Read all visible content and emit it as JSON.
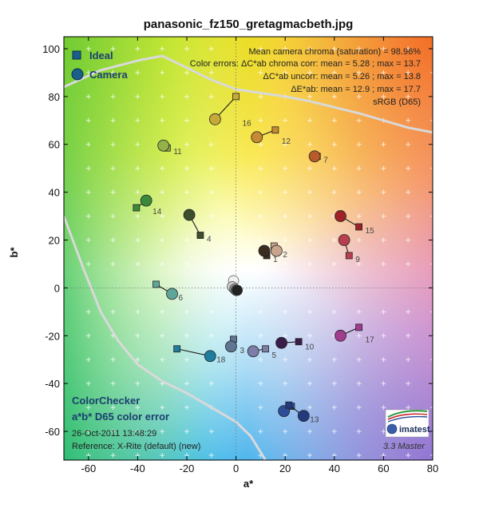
{
  "chart_data": {
    "type": "scatter",
    "title": "panasonic_fz150_gretagmacbeth.jpg",
    "xlabel": "a*",
    "ylabel": "b*",
    "xlim": [
      -70,
      80
    ],
    "ylim": [
      -72,
      105
    ],
    "x_ticks": [
      -60,
      -40,
      -20,
      0,
      20,
      40,
      60,
      80
    ],
    "y_ticks": [
      -60,
      -40,
      -20,
      0,
      20,
      40,
      60,
      80,
      100
    ],
    "x_tick_labels": [
      "-60",
      "-40",
      "-20",
      "0",
      "20",
      "40",
      "60",
      "80"
    ],
    "y_tick_labels": [
      "-60",
      "-40",
      "-20",
      "0",
      "20",
      "40",
      "60",
      "80",
      "100"
    ],
    "legend": {
      "placement": "top-left",
      "items": [
        {
          "label": "Ideal",
          "marker": "square",
          "color": "#1a5e8c"
        },
        {
          "label": "Camera",
          "marker": "circle",
          "color": "#1a5e8c"
        }
      ]
    },
    "stats": [
      "Mean camera chroma (saturation) = 98.96%",
      "Color errors: ΔC*ab chroma corr:  mean = 5.28 ;  max = 13.7",
      "ΔC*ab uncorr:  mean = 5.26 ;  max = 13.8",
      "ΔE*ab:  mean = 12.9 ;  max = 17.7",
      "sRGB (D65)"
    ],
    "bottom_text": {
      "line1": "ColorChecker",
      "line2": "a*b* D65 color error",
      "line3": "26-Oct-2011 13:48:29",
      "line4": "Reference: X-Rite (default) (new)"
    },
    "logo_text": "imatest",
    "version_text": "3.3  Master",
    "patches": [
      {
        "id": "1",
        "ideal": [
          12.5,
          13.5
        ],
        "camera": [
          11.5,
          15.5
        ],
        "color": "#3b2c22"
      },
      {
        "id": "2",
        "ideal": [
          15.5,
          17.5
        ],
        "camera": [
          16.5,
          15.5
        ],
        "color": "#c9a48c"
      },
      {
        "id": "3",
        "ideal": [
          -1,
          -21.5
        ],
        "camera": [
          -2,
          -24.5
        ],
        "color": "#5f7592"
      },
      {
        "id": "4",
        "ideal": [
          -14.5,
          22
        ],
        "camera": [
          -19,
          30.5
        ],
        "color": "#3c4e2b"
      },
      {
        "id": "5",
        "ideal": [
          12,
          -25.5
        ],
        "camera": [
          7,
          -26.5
        ],
        "color": "#7b7ea8"
      },
      {
        "id": "6",
        "ideal": [
          -32.5,
          1.5
        ],
        "camera": [
          -26,
          -2.5
        ],
        "color": "#5ea69a"
      },
      {
        "id": "7",
        "ideal": [
          33,
          55
        ],
        "camera": [
          32,
          55
        ],
        "color": "#b85b2a"
      },
      {
        "id": "8",
        "ideal": [
          22.5,
          -49.5
        ],
        "camera": [
          19.5,
          -51.5
        ],
        "color": "#2c4d9a"
      },
      {
        "id": "9",
        "ideal": [
          46,
          13.5
        ],
        "camera": [
          44,
          20
        ],
        "color": "#b8404e"
      },
      {
        "id": "10",
        "ideal": [
          25.5,
          -22.5
        ],
        "camera": [
          18.5,
          -23
        ],
        "color": "#3a1d4a"
      },
      {
        "id": "11",
        "ideal": [
          -28,
          58.5
        ],
        "camera": [
          -29.5,
          59.5
        ],
        "color": "#93b049"
      },
      {
        "id": "12",
        "ideal": [
          16,
          66
        ],
        "camera": [
          8.5,
          63
        ],
        "color": "#c58a33"
      },
      {
        "id": "13",
        "ideal": [
          21.5,
          -49
        ],
        "camera": [
          27.5,
          -53.5
        ],
        "color": "#233a7e"
      },
      {
        "id": "14",
        "ideal": [
          -40.5,
          33.5
        ],
        "camera": [
          -36.5,
          36.5
        ],
        "color": "#3b8a3c"
      },
      {
        "id": "15",
        "ideal": [
          50,
          25.5
        ],
        "camera": [
          42.5,
          30
        ],
        "color": "#9e2226"
      },
      {
        "id": "16",
        "ideal": [
          0,
          80
        ],
        "camera": [
          -8.5,
          70.5
        ],
        "color": "#c6a93a"
      },
      {
        "id": "17",
        "ideal": [
          50,
          -16.5
        ],
        "camera": [
          42.5,
          -20
        ],
        "color": "#a23c8e"
      },
      {
        "id": "18",
        "ideal": [
          -24,
          -25.5
        ],
        "camera": [
          -10.5,
          -28.5
        ],
        "color": "#1f7d9f"
      }
    ],
    "neutral_points": [
      {
        "camera": [
          -1,
          3
        ],
        "color": "#f1f1f1"
      },
      {
        "camera": [
          -1.5,
          0.5
        ],
        "color": "#c8c8c8"
      },
      {
        "camera": [
          -0.5,
          -0.5
        ],
        "color": "#9c9c9c"
      },
      {
        "camera": [
          0,
          -1
        ],
        "color": "#6e6e6e"
      },
      {
        "camera": [
          0.5,
          -1
        ],
        "color": "#444444"
      },
      {
        "camera": [
          0.5,
          -1
        ],
        "color": "#222222"
      }
    ],
    "gamut_upper": [
      [
        -70,
        84
      ],
      [
        -55,
        91
      ],
      [
        -40,
        95
      ],
      [
        -30,
        97
      ],
      [
        -20,
        92
      ],
      [
        -10,
        87
      ],
      [
        0,
        83
      ],
      [
        10,
        81.5
      ],
      [
        20,
        80
      ],
      [
        30,
        78
      ],
      [
        40,
        75.5
      ],
      [
        50,
        73
      ],
      [
        60,
        70
      ],
      [
        70,
        67
      ],
      [
        80,
        65
      ]
    ],
    "gamut_lower": [
      [
        -70,
        30
      ],
      [
        -62,
        8
      ],
      [
        -55,
        -10
      ],
      [
        -48,
        -22
      ],
      [
        -40,
        -32
      ],
      [
        -30,
        -39
      ],
      [
        -20,
        -44
      ],
      [
        -10,
        -50
      ],
      [
        0,
        -56
      ],
      [
        6,
        -62
      ],
      [
        12,
        -72
      ]
    ]
  }
}
